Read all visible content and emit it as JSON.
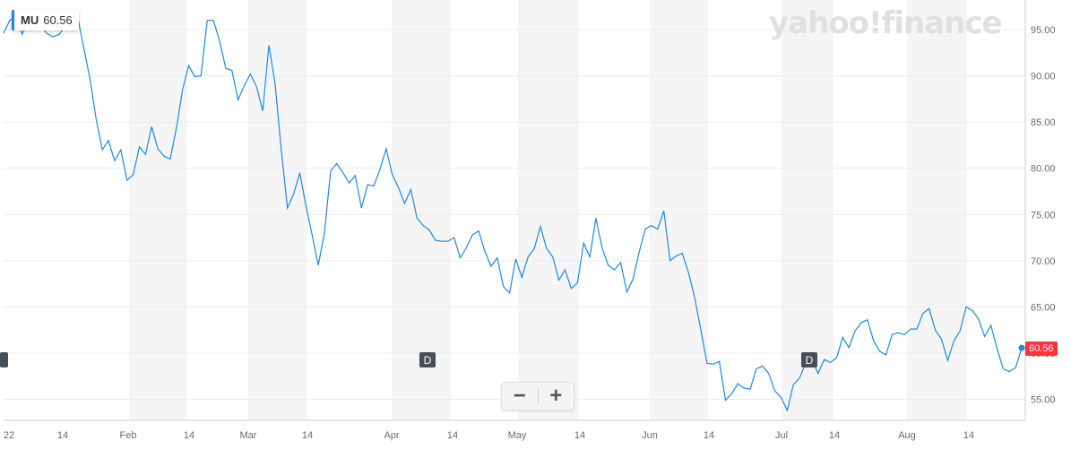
{
  "ticker": {
    "symbol": "MU",
    "price": "60.56"
  },
  "watermark": "yahoo!finance",
  "zoom": {
    "minus": "−",
    "plus": "+"
  },
  "markers": [
    {
      "label": ""
    },
    {
      "label": "D"
    },
    {
      "label": "D"
    }
  ],
  "colors": {
    "line": "#1e88e5",
    "last_price_bg": "#ff333a",
    "band": "#f5f5f5",
    "marker": "#464e56"
  },
  "chart_data": {
    "type": "line",
    "title": "",
    "xlabel": "",
    "ylabel": "",
    "ylim": [
      53.5,
      97.5
    ],
    "y_ticks": [
      "95.00",
      "90.00",
      "85.00",
      "80.00",
      "75.00",
      "70.00",
      "65.00",
      "60.00",
      "55.00"
    ],
    "x_ticks": [
      "22",
      "14",
      "Feb",
      "14",
      "Mar",
      "14",
      "Apr",
      "14",
      "May",
      "14",
      "Jun",
      "14",
      "Jul",
      "14",
      "Aug",
      "14"
    ],
    "grid": true,
    "last_price": "60.56",
    "series": [
      {
        "name": "MU",
        "values": [
          94.6,
          96.0,
          96.5,
          94.5,
          95.8,
          96.8,
          95.4,
          94.6,
          94.2,
          94.5,
          95.3,
          96.3,
          96.4,
          93.0,
          89.7,
          85.3,
          82.0,
          83.0,
          80.8,
          82.0,
          78.7,
          79.3,
          82.3,
          81.5,
          84.5,
          82.1,
          81.3,
          81.0,
          84.3,
          88.5,
          91.1,
          89.9,
          90.0,
          96.0,
          96.0,
          93.8,
          90.8,
          90.6,
          87.4,
          88.9,
          90.2,
          88.8,
          86.2,
          93.3,
          89.2,
          82.0,
          75.7,
          77.2,
          79.5,
          75.9,
          72.8,
          69.5,
          73.0,
          79.7,
          80.5,
          79.5,
          78.4,
          79.2,
          75.7,
          78.2,
          78.1,
          79.9,
          82.1,
          79.3,
          77.9,
          76.2,
          77.7,
          74.6,
          73.8,
          73.3,
          72.2,
          72.1,
          72.1,
          72.5,
          70.3,
          71.4,
          72.8,
          73.2,
          71.0,
          69.4,
          70.3,
          67.2,
          66.5,
          70.2,
          68.2,
          70.4,
          71.3,
          73.7,
          71.3,
          70.4,
          67.9,
          69.0,
          67.0,
          67.6,
          71.9,
          70.4,
          74.6,
          71.4,
          69.5,
          69.0,
          69.8,
          66.6,
          68.0,
          70.9,
          73.4,
          73.8,
          73.4,
          75.4,
          70.0,
          70.5,
          70.8,
          68.7,
          66.0,
          62.5,
          58.9,
          58.8,
          59.1,
          54.9,
          55.6,
          56.7,
          56.2,
          56.1,
          58.3,
          58.6,
          57.8,
          55.9,
          55.2,
          53.8,
          56.6,
          57.3,
          58.9,
          59.3,
          57.8,
          59.3,
          59.0,
          59.5,
          61.7,
          60.6,
          62.4,
          63.3,
          63.6,
          61.3,
          60.2,
          59.8,
          62.0,
          62.2,
          62.0,
          62.6,
          62.6,
          64.3,
          64.8,
          62.5,
          61.5,
          59.2,
          61.3,
          62.4,
          65.0,
          64.6,
          63.7,
          61.8,
          63.0,
          60.5,
          58.3,
          58.0,
          58.4,
          60.56
        ]
      }
    ]
  }
}
